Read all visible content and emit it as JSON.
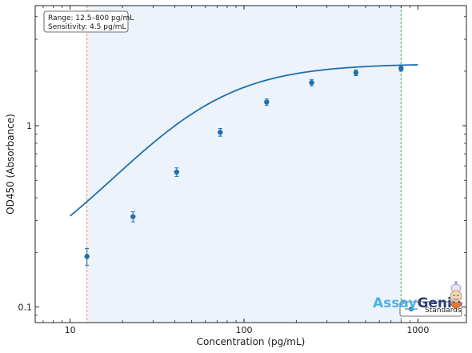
{
  "chart_data": {
    "type": "scatter",
    "x_scale": "log",
    "y_scale": "log",
    "xlim": [
      6.3,
      1900
    ],
    "ylim": [
      0.082,
      4.6
    ],
    "xlabel": "Concentration (pg/mL)",
    "ylabel": "OD450 (Absorbance)",
    "x_ticks": [
      {
        "value": 10,
        "label": "10"
      },
      {
        "value": 100,
        "label": "100"
      },
      {
        "value": 1000,
        "label": "1000"
      }
    ],
    "y_ticks": [
      {
        "value": 0.1,
        "label": "0.1"
      },
      {
        "value": 1,
        "label": "1"
      }
    ],
    "series": [
      {
        "name": "Standards",
        "color": "#1f6fad",
        "points": [
          {
            "x": 12.5,
            "y": 0.19,
            "err": 0.02
          },
          {
            "x": 23,
            "y": 0.315,
            "err": 0.02
          },
          {
            "x": 41,
            "y": 0.555,
            "err": 0.03
          },
          {
            "x": 73,
            "y": 0.92,
            "err": 0.045
          },
          {
            "x": 135,
            "y": 1.35,
            "err": 0.055
          },
          {
            "x": 245,
            "y": 1.73,
            "err": 0.07
          },
          {
            "x": 440,
            "y": 1.96,
            "err": 0.07
          },
          {
            "x": 800,
            "y": 2.07,
            "err": 0.07
          }
        ]
      }
    ],
    "fit_curve": {
      "color": "#1f6fad",
      "x_range": [
        10,
        1000
      ],
      "model": "4PL",
      "bottom": 0.12,
      "top": 2.2,
      "ec50": 50,
      "hill": 1.4
    },
    "range_band": {
      "x_min": 12.5,
      "x_max": 800,
      "color": "#dde9f5"
    },
    "lower_line": {
      "x": 12.5,
      "color": "#e0915a"
    },
    "upper_line": {
      "x": 800,
      "color": "#3cb04a"
    },
    "grid": false,
    "legend_position": "bottom-right"
  },
  "info_box": {
    "line1": "Range: 12.5–800 pg/mL",
    "line2": "Sensitivity: 4.5 pg/mL"
  },
  "legend": {
    "label": "Standards"
  },
  "brand": {
    "part1": "Assay",
    "part2": "Genie",
    "color1": "#4ab3e6",
    "color2": "#2a3f7a"
  }
}
